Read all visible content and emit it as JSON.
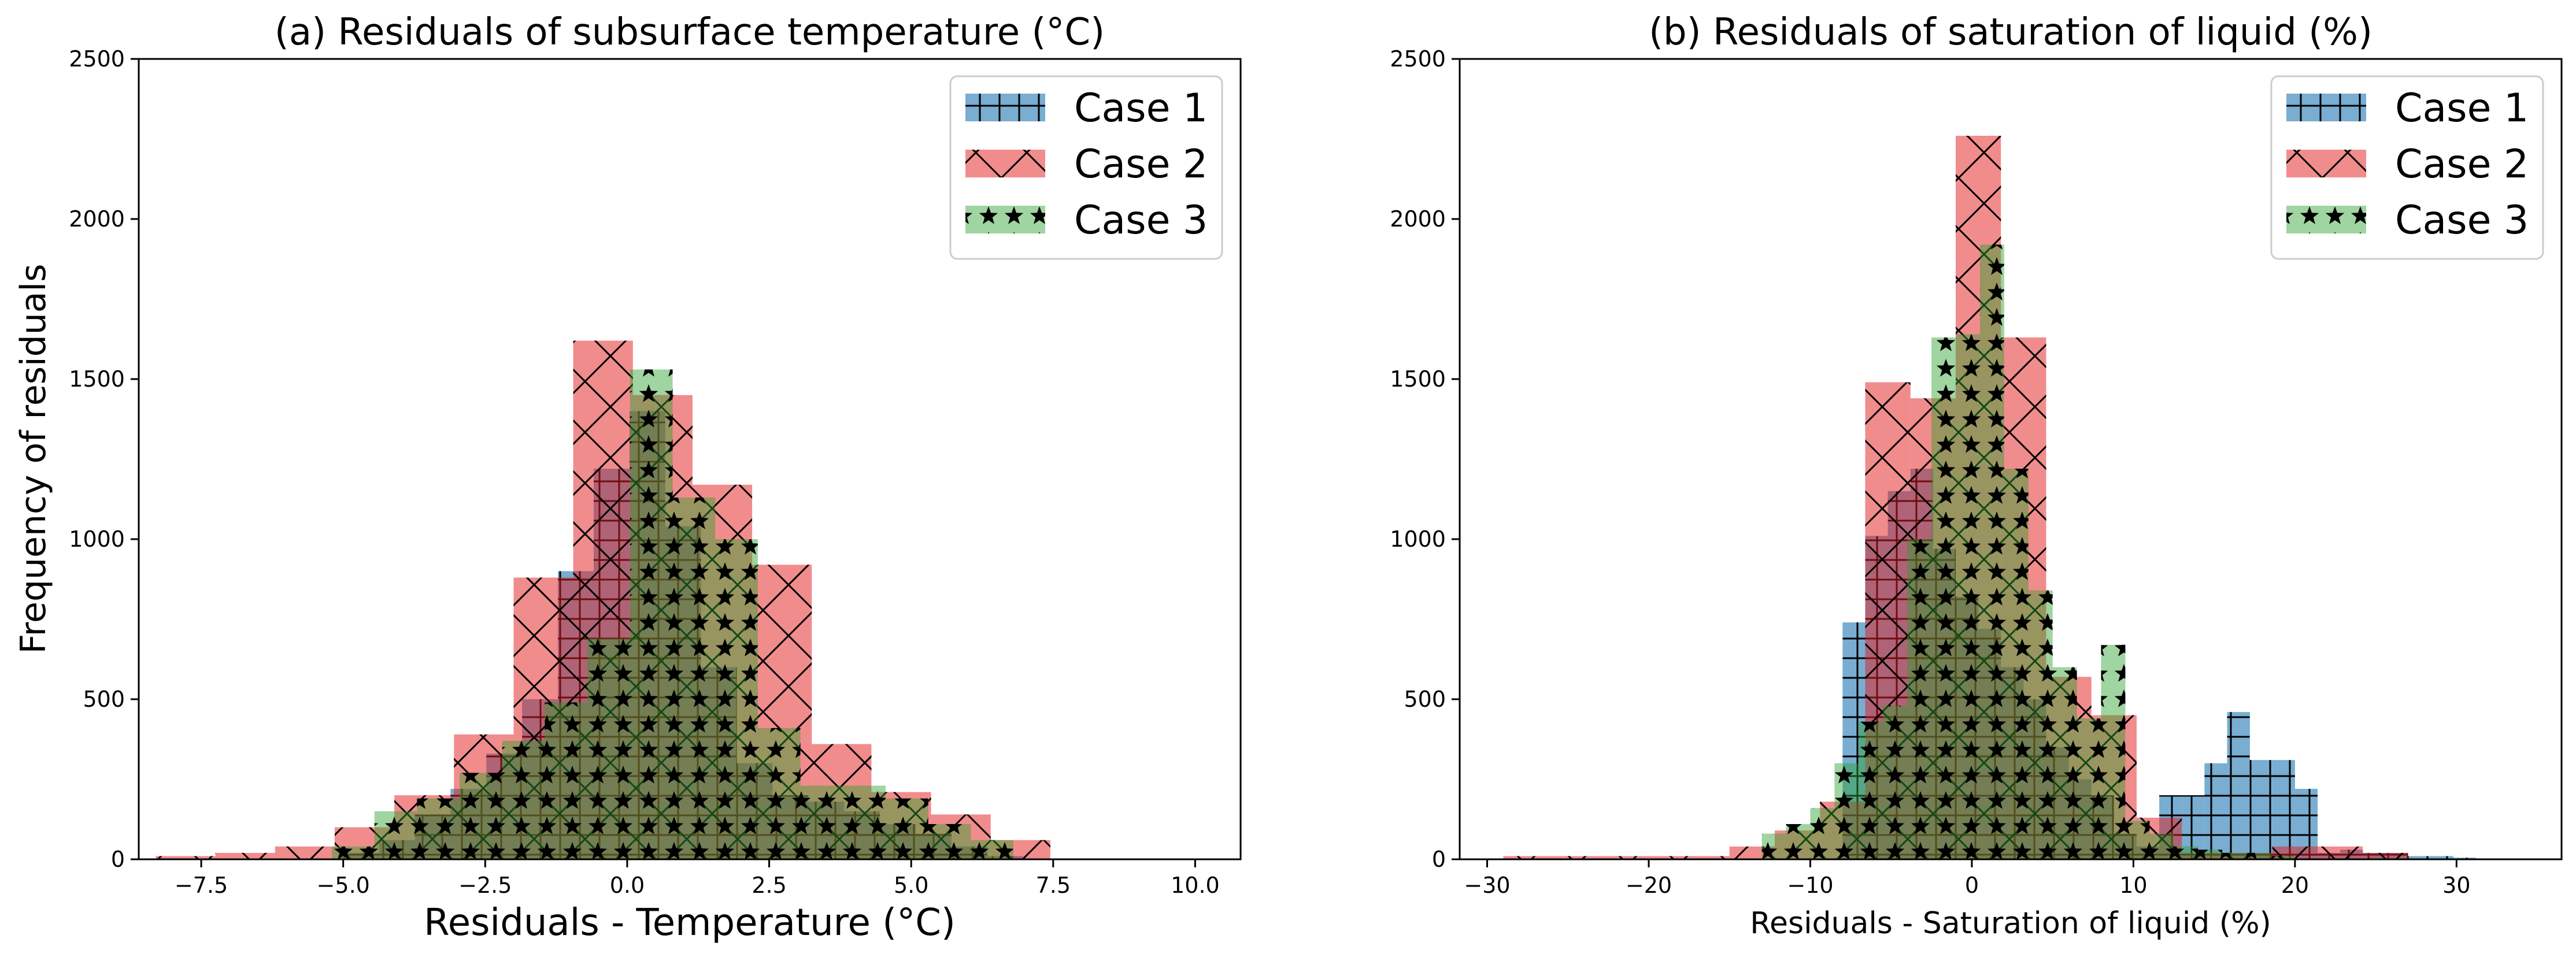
{
  "chart_data": [
    {
      "type": "bar",
      "title": "(a) Residuals of subsurface temperature (°C)",
      "xlabel": "Residuals - Temperature (°C)",
      "ylabel": "Frequency of residuals",
      "xlim": [
        -8.6,
        10.8
      ],
      "ylim": [
        0,
        2500
      ],
      "xticks": [
        -7.5,
        -5.0,
        -2.5,
        0.0,
        2.5,
        5.0,
        7.5,
        10.0
      ],
      "xtick_labels": [
        "−7.5",
        "−5.0",
        "−2.5",
        "0.0",
        "2.5",
        "5.0",
        "7.5",
        "10.0"
      ],
      "yticks": [
        0,
        500,
        1000,
        1500,
        2000,
        2500
      ],
      "ytick_labels": [
        "0",
        "500",
        "1000",
        "1500",
        "2000",
        "2500"
      ],
      "grid": false,
      "legend_position": "upper right",
      "series": [
        {
          "name": "Case 1",
          "color": "#1f77b4",
          "hatch": "plus",
          "bin_edges": [
            -5.0,
            -4.37,
            -3.74,
            -3.11,
            -2.48,
            -1.85,
            -1.22,
            -0.59,
            0.04,
            0.67,
            1.3,
            1.93,
            2.56,
            3.19,
            3.82,
            4.45,
            5.08,
            5.71,
            6.34,
            6.97
          ],
          "values": [
            20,
            60,
            140,
            220,
            330,
            500,
            900,
            1220,
            1400,
            1040,
            600,
            300,
            200,
            180,
            150,
            110,
            80,
            40,
            10
          ]
        },
        {
          "name": "Case 2",
          "color": "#e41a1c",
          "hatch": "x",
          "bin_edges": [
            -8.3,
            -7.25,
            -6.2,
            -5.15,
            -4.1,
            -3.05,
            -2.0,
            -0.95,
            0.1,
            1.15,
            2.2,
            3.25,
            4.3,
            5.35,
            6.4,
            7.45
          ],
          "values": [
            10,
            20,
            40,
            100,
            200,
            390,
            880,
            1620,
            1450,
            1170,
            920,
            360,
            210,
            140,
            60
          ]
        },
        {
          "name": "Case 3",
          "color": "#2ca02c",
          "hatch": "star",
          "bin_edges": [
            -5.2,
            -4.45,
            -3.7,
            -2.95,
            -2.2,
            -1.45,
            -0.7,
            0.05,
            0.8,
            1.55,
            2.3,
            3.05,
            3.8,
            4.55,
            5.3,
            6.05,
            6.8
          ],
          "values": [
            40,
            150,
            190,
            270,
            370,
            490,
            690,
            1530,
            1130,
            1000,
            410,
            230,
            230,
            190,
            110,
            60
          ]
        }
      ]
    },
    {
      "type": "bar",
      "title": "(b) Residuals of saturation of liquid (%)",
      "xlabel": "Residuals - Saturation of liquid (%)",
      "ylabel": "",
      "xlim": [
        -31.7,
        36.5
      ],
      "ylim": [
        0,
        2500
      ],
      "xticks": [
        -30,
        -20,
        -10,
        0,
        10,
        20,
        30
      ],
      "xtick_labels": [
        "−30",
        "−20",
        "−10",
        "0",
        "10",
        "20",
        "30"
      ],
      "yticks": [
        0,
        500,
        1000,
        1500,
        2000,
        2500
      ],
      "ytick_labels": [
        "0",
        "500",
        "1000",
        "1500",
        "2000",
        "2500"
      ],
      "grid": false,
      "legend_position": "upper right",
      "series": [
        {
          "name": "Case 1",
          "color": "#1f77b4",
          "hatch": "plus",
          "bin_edges": [
            -8.0,
            -6.6,
            -5.2,
            -3.8,
            -2.4,
            -1.0,
            0.4,
            1.8,
            3.2,
            4.6,
            6.0,
            7.4,
            8.8,
            10.2,
            11.6,
            13.0,
            14.4,
            15.8,
            17.2,
            18.6,
            20.0,
            21.4,
            22.8,
            24.2,
            25.6,
            27.0,
            28.4,
            29.8,
            31.2
          ],
          "values": [
            740,
            1010,
            1150,
            1220,
            970,
            820,
            720,
            600,
            500,
            350,
            250,
            200,
            80,
            40,
            200,
            200,
            300,
            460,
            310,
            310,
            220,
            20,
            30,
            20,
            20,
            10,
            10,
            5
          ]
        },
        {
          "name": "Case 2",
          "color": "#e41a1c",
          "hatch": "x",
          "bin_edges": [
            -29.0,
            -26.2,
            -23.4,
            -20.6,
            -17.8,
            -15.0,
            -12.2,
            -9.4,
            -6.6,
            -3.8,
            -1.0,
            1.8,
            4.6,
            7.4,
            10.2,
            13.0,
            15.8,
            18.6,
            21.4,
            24.2,
            27.0
          ],
          "values": [
            10,
            10,
            10,
            10,
            10,
            40,
            90,
            180,
            1490,
            1440,
            2260,
            1630,
            570,
            450,
            130,
            20,
            20,
            40,
            40,
            20
          ]
        },
        {
          "name": "Case 3",
          "color": "#2ca02c",
          "hatch": "star",
          "bin_edges": [
            -13.0,
            -11.5,
            -10.0,
            -8.5,
            -7.0,
            -5.5,
            -4.0,
            -2.5,
            -1.0,
            0.5,
            2.0,
            3.5,
            5.0,
            6.5,
            8.0,
            9.5,
            11.0,
            12.5,
            14.0,
            15.5,
            17.0,
            18.5,
            20.0
          ],
          "values": [
            80,
            110,
            160,
            300,
            430,
            480,
            1000,
            1630,
            1640,
            1920,
            1220,
            840,
            600,
            440,
            670,
            120,
            80,
            40,
            30,
            20,
            20,
            10
          ]
        }
      ]
    }
  ]
}
